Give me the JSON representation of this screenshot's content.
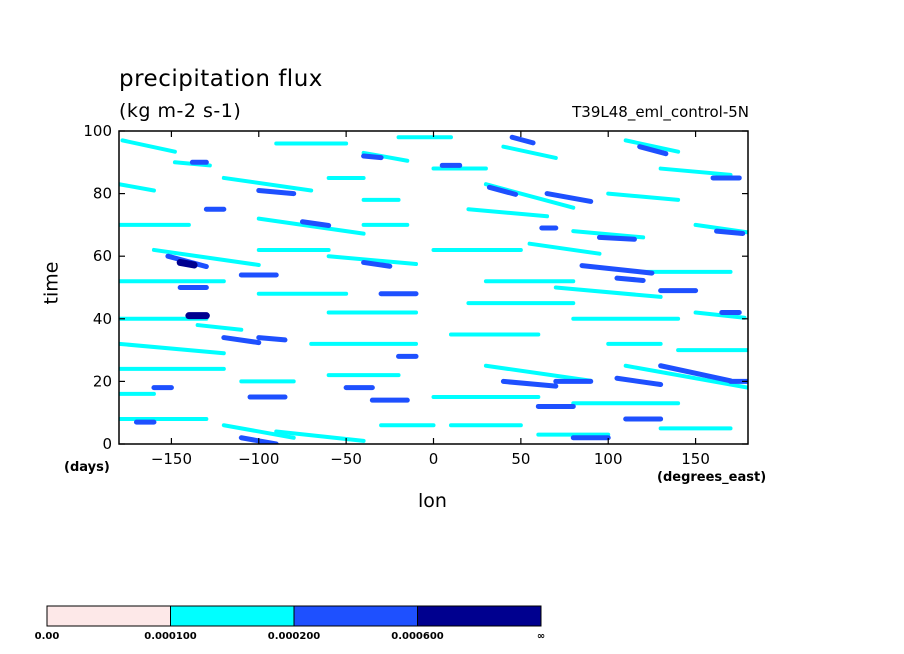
{
  "header": {
    "title": "precipitation flux",
    "units": "(kg m-2 s-1)",
    "run_name": "T39L48_eml_control-5N"
  },
  "axes": {
    "xlabel": "lon",
    "xunit": "(degrees_east)",
    "ylabel": "time",
    "yunit": "(days)"
  },
  "chart_data": {
    "type": "heatmap",
    "x_range": [
      -180,
      180
    ],
    "y_range": [
      0,
      100
    ],
    "x_ticks": [
      -150,
      -100,
      -50,
      0,
      50,
      100,
      150
    ],
    "y_ticks": [
      0,
      20,
      40,
      60,
      80,
      100
    ],
    "colorbar": {
      "levels": [
        "0.00",
        "0.000100",
        "0.000200",
        "0.000600",
        "∞"
      ],
      "colors": [
        "#fde8e8",
        "#00ffff",
        "#1e50ff",
        "#00008f"
      ]
    },
    "streaks": [
      {
        "x": -178,
        "y": 97,
        "len": 30,
        "slope": -0.12,
        "level": 1
      },
      {
        "x": -148,
        "y": 90,
        "len": 20,
        "slope": -0.05,
        "level": 1
      },
      {
        "x": -138,
        "y": 90,
        "len": 8,
        "slope": 0,
        "level": 2
      },
      {
        "x": -90,
        "y": 96,
        "len": 40,
        "slope": 0,
        "level": 1
      },
      {
        "x": -40,
        "y": 93,
        "len": 25,
        "slope": -0.1,
        "level": 1
      },
      {
        "x": -40,
        "y": 92,
        "len": 10,
        "slope": -0.05,
        "level": 2
      },
      {
        "x": -20,
        "y": 98,
        "len": 30,
        "slope": 0,
        "level": 1
      },
      {
        "x": -180,
        "y": 83,
        "len": 20,
        "slope": -0.1,
        "level": 1
      },
      {
        "x": -120,
        "y": 85,
        "len": 50,
        "slope": -0.08,
        "level": 1
      },
      {
        "x": -100,
        "y": 81,
        "len": 20,
        "slope": -0.05,
        "level": 2
      },
      {
        "x": -60,
        "y": 85,
        "len": 20,
        "slope": 0,
        "level": 1
      },
      {
        "x": -40,
        "y": 78,
        "len": 20,
        "slope": 0,
        "level": 1
      },
      {
        "x": 0,
        "y": 88,
        "len": 30,
        "slope": 0,
        "level": 1
      },
      {
        "x": 5,
        "y": 89,
        "len": 10,
        "slope": 0,
        "level": 2
      },
      {
        "x": 40,
        "y": 95,
        "len": 30,
        "slope": -0.12,
        "level": 1
      },
      {
        "x": 45,
        "y": 98,
        "len": 12,
        "slope": -0.15,
        "level": 2
      },
      {
        "x": 110,
        "y": 97,
        "len": 30,
        "slope": -0.12,
        "level": 1
      },
      {
        "x": 118,
        "y": 95,
        "len": 15,
        "slope": -0.15,
        "level": 2
      },
      {
        "x": 130,
        "y": 88,
        "len": 40,
        "slope": -0.05,
        "level": 1
      },
      {
        "x": 160,
        "y": 85,
        "len": 15,
        "slope": 0,
        "level": 2
      },
      {
        "x": 30,
        "y": 83,
        "len": 50,
        "slope": -0.15,
        "level": 1
      },
      {
        "x": 32,
        "y": 82,
        "len": 15,
        "slope": -0.15,
        "level": 2
      },
      {
        "x": 65,
        "y": 80,
        "len": 25,
        "slope": -0.1,
        "level": 2
      },
      {
        "x": 100,
        "y": 80,
        "len": 40,
        "slope": -0.05,
        "level": 1
      },
      {
        "x": 150,
        "y": 70,
        "len": 30,
        "slope": -0.08,
        "level": 1
      },
      {
        "x": 162,
        "y": 68,
        "len": 15,
        "slope": -0.05,
        "level": 2
      },
      {
        "x": -180,
        "y": 70,
        "len": 40,
        "slope": 0,
        "level": 1
      },
      {
        "x": -130,
        "y": 75,
        "len": 10,
        "slope": 0,
        "level": 2
      },
      {
        "x": -100,
        "y": 72,
        "len": 60,
        "slope": -0.08,
        "level": 1
      },
      {
        "x": -75,
        "y": 71,
        "len": 15,
        "slope": -0.08,
        "level": 2
      },
      {
        "x": -40,
        "y": 70,
        "len": 25,
        "slope": 0,
        "level": 1
      },
      {
        "x": 20,
        "y": 75,
        "len": 45,
        "slope": -0.05,
        "level": 1
      },
      {
        "x": 62,
        "y": 69,
        "len": 8,
        "slope": 0,
        "level": 2
      },
      {
        "x": 80,
        "y": 68,
        "len": 40,
        "slope": -0.05,
        "level": 1
      },
      {
        "x": 95,
        "y": 66,
        "len": 20,
        "slope": -0.03,
        "level": 2
      },
      {
        "x": -160,
        "y": 62,
        "len": 60,
        "slope": -0.08,
        "level": 1
      },
      {
        "x": -152,
        "y": 60,
        "len": 22,
        "slope": -0.15,
        "level": 2
      },
      {
        "x": -145,
        "y": 58,
        "len": 8,
        "slope": -0.1,
        "level": 3
      },
      {
        "x": -100,
        "y": 62,
        "len": 40,
        "slope": 0,
        "level": 1
      },
      {
        "x": -110,
        "y": 54,
        "len": 20,
        "slope": 0,
        "level": 2
      },
      {
        "x": -60,
        "y": 60,
        "len": 50,
        "slope": -0.05,
        "level": 1
      },
      {
        "x": -40,
        "y": 58,
        "len": 15,
        "slope": -0.08,
        "level": 2
      },
      {
        "x": 0,
        "y": 62,
        "len": 50,
        "slope": 0,
        "level": 1
      },
      {
        "x": 55,
        "y": 64,
        "len": 40,
        "slope": -0.08,
        "level": 1
      },
      {
        "x": 85,
        "y": 57,
        "len": 40,
        "slope": -0.06,
        "level": 2
      },
      {
        "x": 105,
        "y": 53,
        "len": 15,
        "slope": -0.05,
        "level": 2
      },
      {
        "x": 120,
        "y": 55,
        "len": 50,
        "slope": 0,
        "level": 1
      },
      {
        "x": -180,
        "y": 52,
        "len": 60,
        "slope": 0,
        "level": 1
      },
      {
        "x": -145,
        "y": 50,
        "len": 15,
        "slope": 0,
        "level": 2
      },
      {
        "x": -100,
        "y": 48,
        "len": 50,
        "slope": 0,
        "level": 1
      },
      {
        "x": -30,
        "y": 48,
        "len": 20,
        "slope": 0,
        "level": 2
      },
      {
        "x": 30,
        "y": 52,
        "len": 50,
        "slope": 0,
        "level": 1
      },
      {
        "x": 70,
        "y": 50,
        "len": 60,
        "slope": -0.05,
        "level": 1
      },
      {
        "x": 130,
        "y": 49,
        "len": 20,
        "slope": 0,
        "level": 2
      },
      {
        "x": -180,
        "y": 40,
        "len": 50,
        "slope": 0,
        "level": 1
      },
      {
        "x": -140,
        "y": 41,
        "len": 10,
        "slope": 0,
        "level": 3
      },
      {
        "x": -135,
        "y": 38,
        "len": 25,
        "slope": -0.06,
        "level": 1
      },
      {
        "x": -60,
        "y": 42,
        "len": 50,
        "slope": 0,
        "level": 1
      },
      {
        "x": 20,
        "y": 45,
        "len": 60,
        "slope": 0,
        "level": 1
      },
      {
        "x": 80,
        "y": 40,
        "len": 60,
        "slope": 0,
        "level": 1
      },
      {
        "x": 150,
        "y": 42,
        "len": 28,
        "slope": -0.06,
        "level": 1
      },
      {
        "x": 165,
        "y": 42,
        "len": 10,
        "slope": 0,
        "level": 2
      },
      {
        "x": -180,
        "y": 32,
        "len": 60,
        "slope": -0.05,
        "level": 1
      },
      {
        "x": -120,
        "y": 34,
        "len": 20,
        "slope": -0.08,
        "level": 2
      },
      {
        "x": -100,
        "y": 34,
        "len": 15,
        "slope": -0.05,
        "level": 2
      },
      {
        "x": -70,
        "y": 32,
        "len": 60,
        "slope": 0,
        "level": 1
      },
      {
        "x": 10,
        "y": 35,
        "len": 50,
        "slope": 0,
        "level": 1
      },
      {
        "x": 100,
        "y": 32,
        "len": 30,
        "slope": 0,
        "level": 1
      },
      {
        "x": 140,
        "y": 30,
        "len": 40,
        "slope": 0,
        "level": 1
      },
      {
        "x": -180,
        "y": 24,
        "len": 60,
        "slope": 0,
        "level": 1
      },
      {
        "x": -110,
        "y": 20,
        "len": 30,
        "slope": 0,
        "level": 1
      },
      {
        "x": -60,
        "y": 22,
        "len": 40,
        "slope": 0,
        "level": 1
      },
      {
        "x": -20,
        "y": 28,
        "len": 10,
        "slope": 0,
        "level": 2
      },
      {
        "x": 30,
        "y": 25,
        "len": 60,
        "slope": -0.08,
        "level": 1
      },
      {
        "x": 110,
        "y": 25,
        "len": 70,
        "slope": -0.1,
        "level": 1
      },
      {
        "x": 130,
        "y": 25,
        "len": 40,
        "slope": -0.12,
        "level": 2
      },
      {
        "x": 105,
        "y": 21,
        "len": 25,
        "slope": -0.08,
        "level": 2
      },
      {
        "x": 170,
        "y": 20,
        "len": 10,
        "slope": 0,
        "level": 2
      },
      {
        "x": -180,
        "y": 16,
        "len": 20,
        "slope": 0,
        "level": 1
      },
      {
        "x": -160,
        "y": 18,
        "len": 10,
        "slope": 0,
        "level": 2
      },
      {
        "x": -105,
        "y": 15,
        "len": 20,
        "slope": 0,
        "level": 2
      },
      {
        "x": -50,
        "y": 18,
        "len": 15,
        "slope": 0,
        "level": 2
      },
      {
        "x": -35,
        "y": 14,
        "len": 20,
        "slope": 0,
        "level": 2
      },
      {
        "x": 0,
        "y": 15,
        "len": 60,
        "slope": 0,
        "level": 1
      },
      {
        "x": 40,
        "y": 20,
        "len": 30,
        "slope": -0.05,
        "level": 2
      },
      {
        "x": 70,
        "y": 20,
        "len": 20,
        "slope": 0,
        "level": 2
      },
      {
        "x": 80,
        "y": 13,
        "len": 60,
        "slope": 0,
        "level": 1
      },
      {
        "x": -180,
        "y": 8,
        "len": 50,
        "slope": 0,
        "level": 1
      },
      {
        "x": -170,
        "y": 7,
        "len": 10,
        "slope": 0,
        "level": 2
      },
      {
        "x": -120,
        "y": 6,
        "len": 40,
        "slope": -0.1,
        "level": 1
      },
      {
        "x": -110,
        "y": 2,
        "len": 20,
        "slope": -0.1,
        "level": 2
      },
      {
        "x": -90,
        "y": 4,
        "len": 50,
        "slope": -0.06,
        "level": 1
      },
      {
        "x": -30,
        "y": 6,
        "len": 30,
        "slope": 0,
        "level": 1
      },
      {
        "x": 10,
        "y": 6,
        "len": 40,
        "slope": 0,
        "level": 1
      },
      {
        "x": 60,
        "y": 12,
        "len": 20,
        "slope": 0,
        "level": 2
      },
      {
        "x": 60,
        "y": 3,
        "len": 40,
        "slope": 0,
        "level": 1
      },
      {
        "x": 80,
        "y": 2,
        "len": 20,
        "slope": 0,
        "level": 2
      },
      {
        "x": 110,
        "y": 8,
        "len": 20,
        "slope": 0,
        "level": 2
      },
      {
        "x": 130,
        "y": 5,
        "len": 40,
        "slope": 0,
        "level": 1
      }
    ]
  }
}
